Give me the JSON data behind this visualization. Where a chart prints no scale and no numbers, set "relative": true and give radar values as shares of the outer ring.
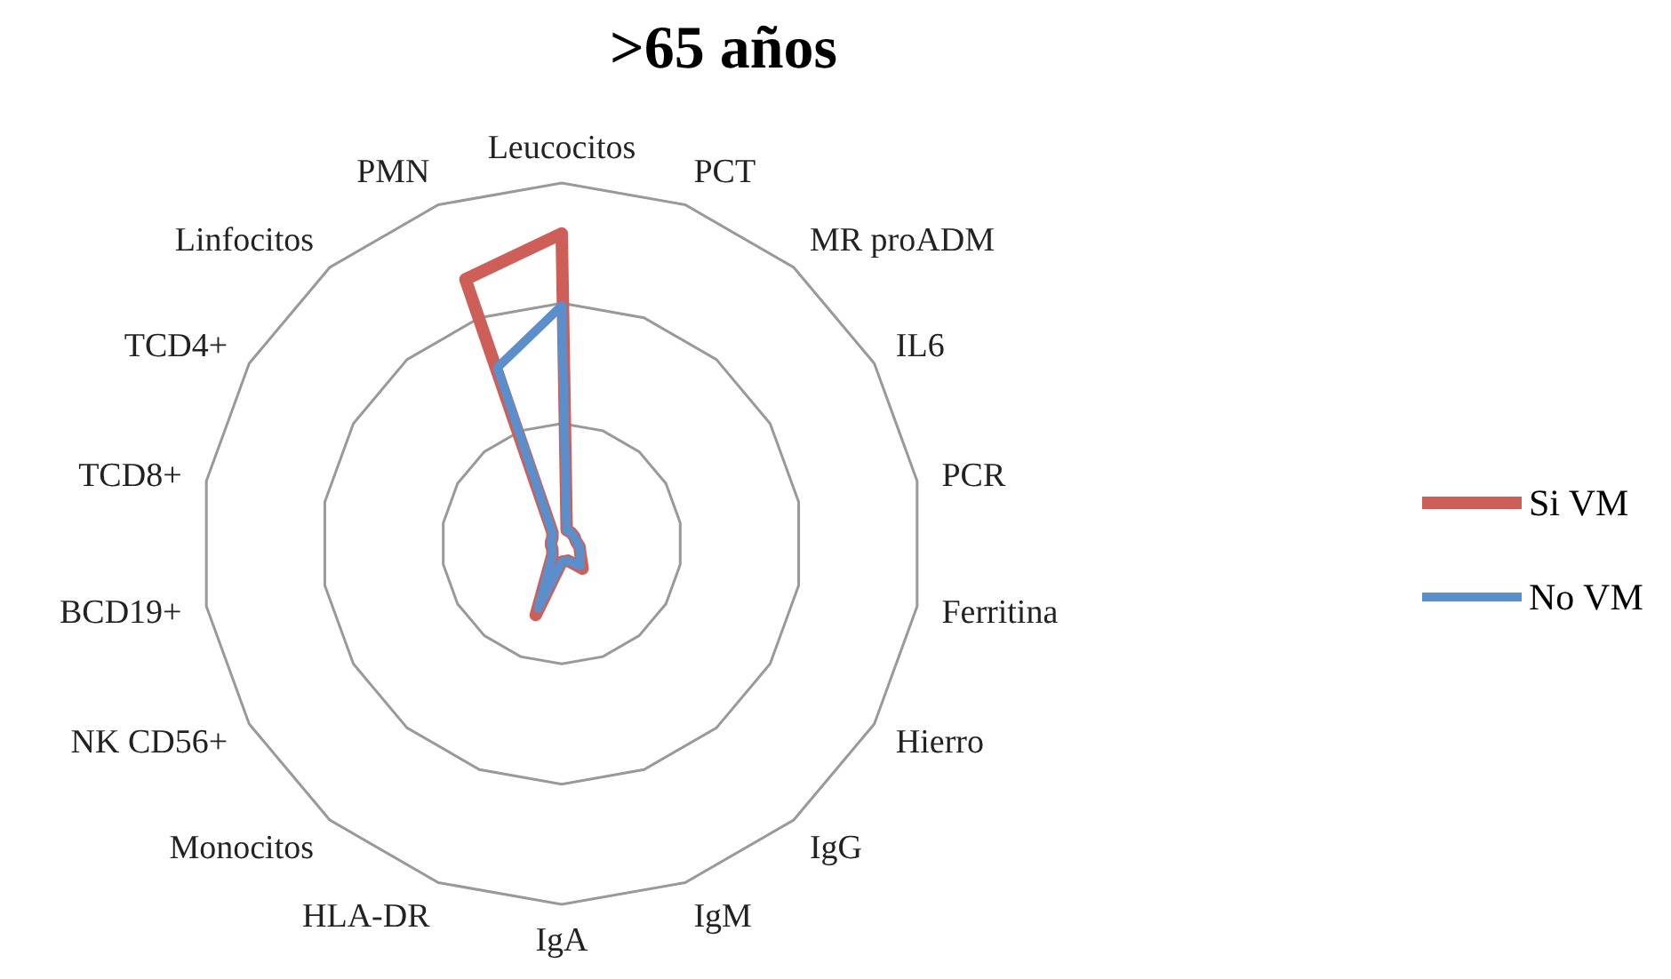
{
  "chart_data": {
    "type": "radar",
    "title": ">65 años",
    "relative": true,
    "grid": true,
    "legend": "right",
    "marker": "none",
    "categories": [
      "Leucocitos",
      "PCT",
      "MR proADM",
      "IL6",
      "PCR",
      "Ferritina",
      "Hierro",
      "IgG",
      "IgM",
      "IgA",
      "HLA-DR",
      "Monocitos",
      "NK CD56+",
      "BCD19+",
      "TCD8+",
      "TCD4+",
      "Linfocitos",
      "PMN"
    ],
    "series": [
      {
        "name": "Si VM",
        "color": "#cd5f58",
        "values": [
          0.86,
          0.04,
          0.04,
          0.04,
          0.04,
          0.05,
          0.06,
          0.09,
          0.05,
          0.05,
          0.21,
          0.04,
          0.03,
          0.03,
          0.03,
          0.03,
          0.04,
          0.78
        ]
      },
      {
        "name": "No VM",
        "color": "#5b8fcc",
        "values": [
          0.66,
          0.04,
          0.04,
          0.04,
          0.04,
          0.05,
          0.06,
          0.08,
          0.05,
          0.05,
          0.19,
          0.04,
          0.03,
          0.03,
          0.03,
          0.03,
          0.04,
          0.52
        ]
      }
    ]
  }
}
